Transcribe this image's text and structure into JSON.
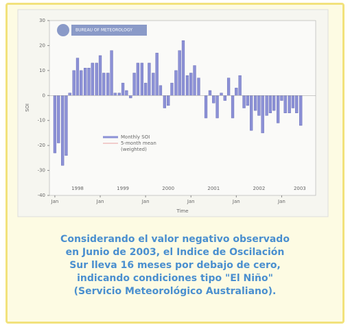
{
  "chart_data": {
    "type": "bar",
    "logo": "BUREAU OF METEOROLOGY",
    "ylabel": "SOI",
    "xlabel": "Time",
    "series": [
      {
        "name": "Monthly SOI",
        "color": "#8c91d6",
        "values": [
          -23,
          -19,
          -28,
          -24,
          1,
          10,
          15,
          10,
          11,
          11,
          13,
          13,
          16,
          9,
          9,
          18,
          1,
          1,
          5,
          2,
          -1,
          9,
          13,
          13,
          5,
          13,
          9,
          17,
          4,
          -5,
          -4,
          5,
          10,
          18,
          22,
          8,
          9,
          12,
          7,
          0,
          -9,
          2,
          -3,
          -9,
          1,
          -2,
          7,
          -9,
          3,
          8,
          -5,
          -4,
          -14,
          -6,
          -8,
          -15,
          -8,
          -7,
          -6,
          -11,
          -2,
          -7,
          -7,
          -5,
          -7,
          -12
        ]
      }
    ],
    "x": [
      1998,
      1998.08,
      1998.17,
      1998.25,
      1998.33,
      1998.42,
      1998.5,
      1998.58,
      1998.67,
      1998.75,
      1998.83,
      1998.92,
      1999,
      1999.08,
      1999.17,
      1999.25,
      1999.33,
      1999.42,
      1999.5,
      1999.58,
      1999.67,
      1999.75,
      1999.83,
      1999.92,
      2000,
      2000.08,
      2000.17,
      2000.25,
      2000.33,
      2000.42,
      2000.5,
      2000.58,
      2000.67,
      2000.75,
      2000.83,
      2000.92,
      2001,
      2001.08,
      2001.17,
      2001.25,
      2001.33,
      2001.42,
      2001.5,
      2001.58,
      2001.67,
      2001.75,
      2001.83,
      2001.92,
      2002,
      2002.08,
      2002.17,
      2002.25,
      2002.33,
      2002.42,
      2002.5,
      2002.58,
      2002.67,
      2002.75,
      2002.83,
      2002.92,
      2003,
      2003.08,
      2003.17,
      2003.25,
      2003.33,
      2003.42
    ],
    "legend_extra": [
      "5-month mean",
      "(weighted)"
    ],
    "mean_color": "#e8a0a0",
    "xlim": [
      1997.88,
      2003.75
    ],
    "xticks": [
      {
        "value": 1998,
        "label": "Jan"
      },
      {
        "value": 1999,
        "label": "Jan"
      },
      {
        "value": 2000,
        "label": "Jan"
      },
      {
        "value": 2001,
        "label": "Jan"
      },
      {
        "value": 2002,
        "label": "Jan"
      },
      {
        "value": 2003,
        "label": "Jan"
      }
    ],
    "year_labels": [
      {
        "value": 1998.5,
        "label": "1998"
      },
      {
        "value": 1999.5,
        "label": "1999"
      },
      {
        "value": 2000.5,
        "label": "2000"
      },
      {
        "value": 2001.5,
        "label": "2001"
      },
      {
        "value": 2002.5,
        "label": "2002"
      },
      {
        "value": 2003.4,
        "label": "2003"
      }
    ],
    "ylim": [
      -40,
      30
    ],
    "yticks": [
      -40,
      -30,
      -20,
      -10,
      0,
      10,
      20,
      30
    ]
  },
  "caption": [
    "Considerando el valor negativo observado",
    "en Junio de 2003, el Indice de Oscilación",
    "Sur lleva 16 meses por debajo de cero,",
    "indicando condiciones tipo \"El Niño\"",
    "(Servicio Meteorológico Australiano)."
  ]
}
